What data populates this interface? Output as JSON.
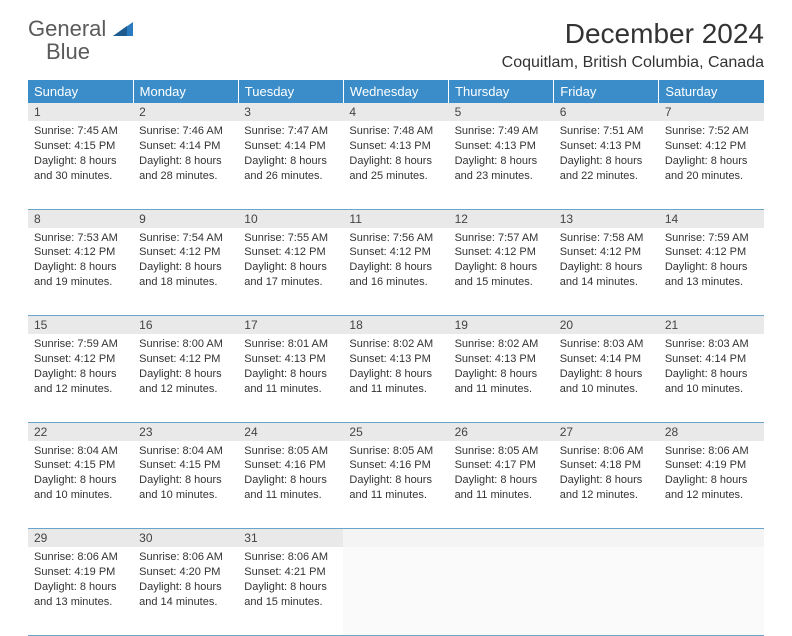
{
  "brand": {
    "line1": "General",
    "line2": "Blue"
  },
  "header": {
    "title": "December 2024",
    "location": "Coquitlam, British Columbia, Canada"
  },
  "colors": {
    "header_bg": "#3a8dc9",
    "header_text": "#ffffff",
    "daynum_bg": "#e9e9e9",
    "row_divider": "#6aa3cc",
    "logo_blue": "#2a7bbf",
    "text": "#333333"
  },
  "weekdays": [
    "Sunday",
    "Monday",
    "Tuesday",
    "Wednesday",
    "Thursday",
    "Friday",
    "Saturday"
  ],
  "weeks": [
    [
      {
        "day": "1",
        "sunrise": "Sunrise: 7:45 AM",
        "sunset": "Sunset: 4:15 PM",
        "dl1": "Daylight: 8 hours",
        "dl2": "and 30 minutes."
      },
      {
        "day": "2",
        "sunrise": "Sunrise: 7:46 AM",
        "sunset": "Sunset: 4:14 PM",
        "dl1": "Daylight: 8 hours",
        "dl2": "and 28 minutes."
      },
      {
        "day": "3",
        "sunrise": "Sunrise: 7:47 AM",
        "sunset": "Sunset: 4:14 PM",
        "dl1": "Daylight: 8 hours",
        "dl2": "and 26 minutes."
      },
      {
        "day": "4",
        "sunrise": "Sunrise: 7:48 AM",
        "sunset": "Sunset: 4:13 PM",
        "dl1": "Daylight: 8 hours",
        "dl2": "and 25 minutes."
      },
      {
        "day": "5",
        "sunrise": "Sunrise: 7:49 AM",
        "sunset": "Sunset: 4:13 PM",
        "dl1": "Daylight: 8 hours",
        "dl2": "and 23 minutes."
      },
      {
        "day": "6",
        "sunrise": "Sunrise: 7:51 AM",
        "sunset": "Sunset: 4:13 PM",
        "dl1": "Daylight: 8 hours",
        "dl2": "and 22 minutes."
      },
      {
        "day": "7",
        "sunrise": "Sunrise: 7:52 AM",
        "sunset": "Sunset: 4:12 PM",
        "dl1": "Daylight: 8 hours",
        "dl2": "and 20 minutes."
      }
    ],
    [
      {
        "day": "8",
        "sunrise": "Sunrise: 7:53 AM",
        "sunset": "Sunset: 4:12 PM",
        "dl1": "Daylight: 8 hours",
        "dl2": "and 19 minutes."
      },
      {
        "day": "9",
        "sunrise": "Sunrise: 7:54 AM",
        "sunset": "Sunset: 4:12 PM",
        "dl1": "Daylight: 8 hours",
        "dl2": "and 18 minutes."
      },
      {
        "day": "10",
        "sunrise": "Sunrise: 7:55 AM",
        "sunset": "Sunset: 4:12 PM",
        "dl1": "Daylight: 8 hours",
        "dl2": "and 17 minutes."
      },
      {
        "day": "11",
        "sunrise": "Sunrise: 7:56 AM",
        "sunset": "Sunset: 4:12 PM",
        "dl1": "Daylight: 8 hours",
        "dl2": "and 16 minutes."
      },
      {
        "day": "12",
        "sunrise": "Sunrise: 7:57 AM",
        "sunset": "Sunset: 4:12 PM",
        "dl1": "Daylight: 8 hours",
        "dl2": "and 15 minutes."
      },
      {
        "day": "13",
        "sunrise": "Sunrise: 7:58 AM",
        "sunset": "Sunset: 4:12 PM",
        "dl1": "Daylight: 8 hours",
        "dl2": "and 14 minutes."
      },
      {
        "day": "14",
        "sunrise": "Sunrise: 7:59 AM",
        "sunset": "Sunset: 4:12 PM",
        "dl1": "Daylight: 8 hours",
        "dl2": "and 13 minutes."
      }
    ],
    [
      {
        "day": "15",
        "sunrise": "Sunrise: 7:59 AM",
        "sunset": "Sunset: 4:12 PM",
        "dl1": "Daylight: 8 hours",
        "dl2": "and 12 minutes."
      },
      {
        "day": "16",
        "sunrise": "Sunrise: 8:00 AM",
        "sunset": "Sunset: 4:12 PM",
        "dl1": "Daylight: 8 hours",
        "dl2": "and 12 minutes."
      },
      {
        "day": "17",
        "sunrise": "Sunrise: 8:01 AM",
        "sunset": "Sunset: 4:13 PM",
        "dl1": "Daylight: 8 hours",
        "dl2": "and 11 minutes."
      },
      {
        "day": "18",
        "sunrise": "Sunrise: 8:02 AM",
        "sunset": "Sunset: 4:13 PM",
        "dl1": "Daylight: 8 hours",
        "dl2": "and 11 minutes."
      },
      {
        "day": "19",
        "sunrise": "Sunrise: 8:02 AM",
        "sunset": "Sunset: 4:13 PM",
        "dl1": "Daylight: 8 hours",
        "dl2": "and 11 minutes."
      },
      {
        "day": "20",
        "sunrise": "Sunrise: 8:03 AM",
        "sunset": "Sunset: 4:14 PM",
        "dl1": "Daylight: 8 hours",
        "dl2": "and 10 minutes."
      },
      {
        "day": "21",
        "sunrise": "Sunrise: 8:03 AM",
        "sunset": "Sunset: 4:14 PM",
        "dl1": "Daylight: 8 hours",
        "dl2": "and 10 minutes."
      }
    ],
    [
      {
        "day": "22",
        "sunrise": "Sunrise: 8:04 AM",
        "sunset": "Sunset: 4:15 PM",
        "dl1": "Daylight: 8 hours",
        "dl2": "and 10 minutes."
      },
      {
        "day": "23",
        "sunrise": "Sunrise: 8:04 AM",
        "sunset": "Sunset: 4:15 PM",
        "dl1": "Daylight: 8 hours",
        "dl2": "and 10 minutes."
      },
      {
        "day": "24",
        "sunrise": "Sunrise: 8:05 AM",
        "sunset": "Sunset: 4:16 PM",
        "dl1": "Daylight: 8 hours",
        "dl2": "and 11 minutes."
      },
      {
        "day": "25",
        "sunrise": "Sunrise: 8:05 AM",
        "sunset": "Sunset: 4:16 PM",
        "dl1": "Daylight: 8 hours",
        "dl2": "and 11 minutes."
      },
      {
        "day": "26",
        "sunrise": "Sunrise: 8:05 AM",
        "sunset": "Sunset: 4:17 PM",
        "dl1": "Daylight: 8 hours",
        "dl2": "and 11 minutes."
      },
      {
        "day": "27",
        "sunrise": "Sunrise: 8:06 AM",
        "sunset": "Sunset: 4:18 PM",
        "dl1": "Daylight: 8 hours",
        "dl2": "and 12 minutes."
      },
      {
        "day": "28",
        "sunrise": "Sunrise: 8:06 AM",
        "sunset": "Sunset: 4:19 PM",
        "dl1": "Daylight: 8 hours",
        "dl2": "and 12 minutes."
      }
    ],
    [
      {
        "day": "29",
        "sunrise": "Sunrise: 8:06 AM",
        "sunset": "Sunset: 4:19 PM",
        "dl1": "Daylight: 8 hours",
        "dl2": "and 13 minutes."
      },
      {
        "day": "30",
        "sunrise": "Sunrise: 8:06 AM",
        "sunset": "Sunset: 4:20 PM",
        "dl1": "Daylight: 8 hours",
        "dl2": "and 14 minutes."
      },
      {
        "day": "31",
        "sunrise": "Sunrise: 8:06 AM",
        "sunset": "Sunset: 4:21 PM",
        "dl1": "Daylight: 8 hours",
        "dl2": "and 15 minutes."
      },
      null,
      null,
      null,
      null
    ]
  ]
}
